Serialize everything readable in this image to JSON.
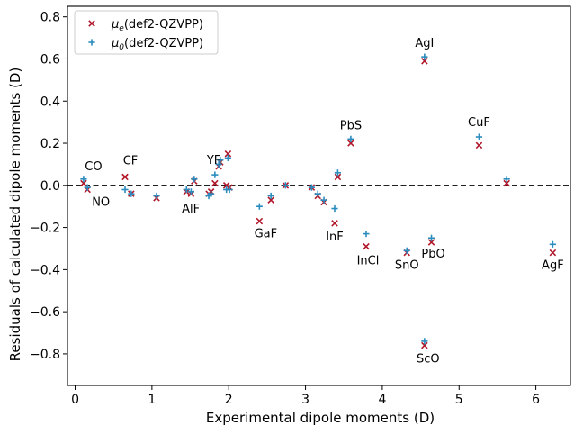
{
  "chart_data": {
    "type": "scatter",
    "xlabel": "Experimental dipole moments (D)",
    "ylabel": "Residuals of calculated dipole moments (D)",
    "xlim": [
      -0.1,
      6.45
    ],
    "ylim": [
      -0.95,
      0.85
    ],
    "xticks": [
      0,
      1,
      2,
      3,
      4,
      5,
      6
    ],
    "xtick_labels": [
      "0",
      "1",
      "2",
      "3",
      "4",
      "5",
      "6"
    ],
    "yticks": [
      0.8,
      0.6,
      0.4,
      0.2,
      0.0,
      -0.2,
      -0.4,
      -0.6,
      -0.8
    ],
    "ytick_labels": [
      "0.8",
      "0.6",
      "0.4",
      "0.2",
      "0.0",
      "−0.2",
      "−0.4",
      "−0.6",
      "−0.8"
    ],
    "reference_line": {
      "y": 0,
      "style": "dashed"
    },
    "grid": false,
    "legend_position": "top-left",
    "series": [
      {
        "name": "μe(def2-QZVPP)",
        "legend_base": "μ",
        "legend_sub": "e",
        "legend_rest": "(def2-QZVPP)",
        "marker": "x",
        "color": "#b2182b",
        "points": [
          [
            0.11,
            0.01
          ],
          [
            0.16,
            -0.02
          ],
          [
            0.65,
            0.04
          ],
          [
            0.73,
            -0.04
          ],
          [
            1.06,
            -0.06
          ],
          [
            1.45,
            -0.03
          ],
          [
            1.51,
            -0.04
          ],
          [
            1.55,
            0.02
          ],
          [
            1.74,
            -0.04
          ],
          [
            1.77,
            -0.03
          ],
          [
            1.82,
            0.01
          ],
          [
            1.87,
            0.09
          ],
          [
            1.89,
            0.11
          ],
          [
            1.97,
            0.0
          ],
          [
            1.99,
            0.15
          ],
          [
            2.01,
            -0.01
          ],
          [
            2.4,
            -0.17
          ],
          [
            2.55,
            -0.07
          ],
          [
            2.74,
            0.0
          ],
          [
            3.08,
            -0.01
          ],
          [
            3.16,
            -0.05
          ],
          [
            3.24,
            -0.08
          ],
          [
            3.38,
            -0.18
          ],
          [
            3.42,
            0.04
          ],
          [
            3.59,
            0.2
          ],
          [
            3.79,
            -0.29
          ],
          [
            4.32,
            -0.32
          ],
          [
            4.55,
            0.59
          ],
          [
            4.55,
            -0.76
          ],
          [
            4.64,
            -0.27
          ],
          [
            5.26,
            0.19
          ],
          [
            5.62,
            0.01
          ],
          [
            6.22,
            -0.32
          ]
        ]
      },
      {
        "name": "μ0(def2-QZVPP)",
        "legend_base": "μ",
        "legend_sub": "0",
        "legend_rest": "(def2-QZVPP)",
        "marker": "+",
        "color": "#2b8cbe",
        "points": [
          [
            0.11,
            0.03
          ],
          [
            0.16,
            -0.01
          ],
          [
            0.65,
            -0.02
          ],
          [
            0.73,
            -0.04
          ],
          [
            1.06,
            -0.05
          ],
          [
            1.45,
            -0.02
          ],
          [
            1.51,
            -0.03
          ],
          [
            1.55,
            0.03
          ],
          [
            1.74,
            -0.05
          ],
          [
            1.77,
            -0.04
          ],
          [
            1.82,
            0.05
          ],
          [
            1.87,
            0.1
          ],
          [
            1.89,
            0.12
          ],
          [
            1.97,
            -0.02
          ],
          [
            1.99,
            0.13
          ],
          [
            2.01,
            -0.02
          ],
          [
            2.4,
            -0.1
          ],
          [
            2.55,
            -0.05
          ],
          [
            2.74,
            0.0
          ],
          [
            3.08,
            -0.01
          ],
          [
            3.16,
            -0.04
          ],
          [
            3.24,
            -0.07
          ],
          [
            3.38,
            -0.11
          ],
          [
            3.42,
            0.06
          ],
          [
            3.59,
            0.22
          ],
          [
            3.79,
            -0.23
          ],
          [
            4.32,
            -0.31
          ],
          [
            4.55,
            0.61
          ],
          [
            4.55,
            -0.74
          ],
          [
            4.64,
            -0.25
          ],
          [
            5.26,
            0.23
          ],
          [
            5.62,
            0.03
          ],
          [
            6.22,
            -0.28
          ]
        ]
      }
    ],
    "annotations": [
      {
        "text": "CO",
        "x": 0.11,
        "y": 0.03
      },
      {
        "text": "NO",
        "x": 0.16,
        "y": -0.02
      },
      {
        "text": "CF",
        "x": 0.65,
        "y": 0.04
      },
      {
        "text": "AlF",
        "x": 1.53,
        "y": -0.04
      },
      {
        "text": "YF",
        "x": 1.84,
        "y": 0.05
      },
      {
        "text": "GaF",
        "x": 2.4,
        "y": -0.17
      },
      {
        "text": "InF",
        "x": 3.38,
        "y": -0.18
      },
      {
        "text": "PbS",
        "x": 3.59,
        "y": 0.22
      },
      {
        "text": "InCl",
        "x": 3.79,
        "y": -0.29
      },
      {
        "text": "SnO",
        "x": 4.32,
        "y": -0.32
      },
      {
        "text": "AgI",
        "x": 4.55,
        "y": 0.61
      },
      {
        "text": "ScO",
        "x": 4.55,
        "y": -0.76
      },
      {
        "text": "PbO",
        "x": 4.64,
        "y": -0.27
      },
      {
        "text": "CuF",
        "x": 5.26,
        "y": 0.23
      },
      {
        "text": "AgF",
        "x": 6.22,
        "y": -0.32
      }
    ]
  }
}
